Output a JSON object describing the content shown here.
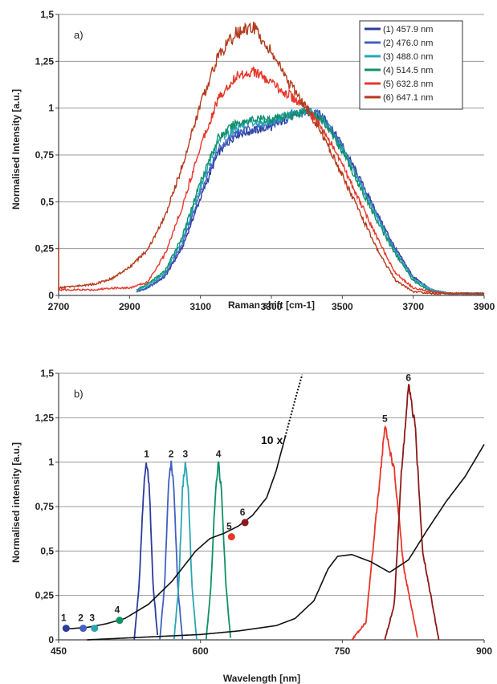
{
  "chart_data": [
    {
      "type": "line",
      "panel_label": "a)",
      "xlabel": "Raman shift [cm-1]",
      "ylabel": "Normalised Intensity [a.u.]",
      "xlim": [
        2700,
        3900
      ],
      "ylim": [
        0,
        1.5
      ],
      "x_ticks": [
        "2700",
        "2900",
        "3100",
        "3300",
        "3500",
        "3700",
        "3900"
      ],
      "y_ticks": [
        "0",
        "0,25",
        "0,5",
        "0,75",
        "1",
        "1,25",
        "1,5"
      ],
      "grid": "horizontal",
      "legend_position": "top-right",
      "series": [
        {
          "name": "(1) 457.9 nm",
          "color": "#2b3c9c",
          "x": [
            2920,
            2950,
            3000,
            3050,
            3100,
            3150,
            3200,
            3250,
            3300,
            3350,
            3400,
            3430,
            3450,
            3500,
            3550,
            3600,
            3650,
            3700,
            3750,
            3800,
            3850,
            3900
          ],
          "y": [
            0.02,
            0.04,
            0.1,
            0.26,
            0.52,
            0.76,
            0.86,
            0.88,
            0.9,
            0.95,
            0.98,
            0.97,
            0.95,
            0.8,
            0.62,
            0.43,
            0.25,
            0.1,
            0.03,
            0.01,
            0.01,
            0.01
          ]
        },
        {
          "name": "(2) 476.0 nm",
          "color": "#4160c0",
          "x": [
            2920,
            2950,
            3000,
            3050,
            3100,
            3150,
            3200,
            3250,
            3300,
            3350,
            3400,
            3430,
            3450,
            3500,
            3550,
            3600,
            3650,
            3700,
            3750,
            3800,
            3850,
            3900
          ],
          "y": [
            0.02,
            0.04,
            0.11,
            0.28,
            0.55,
            0.78,
            0.87,
            0.89,
            0.91,
            0.96,
            0.99,
            0.97,
            0.94,
            0.79,
            0.61,
            0.42,
            0.24,
            0.09,
            0.03,
            0.01,
            0.01,
            0.01
          ]
        },
        {
          "name": "(3) 488.0 nm",
          "color": "#2aa6b4",
          "x": [
            2920,
            2950,
            3000,
            3050,
            3100,
            3150,
            3200,
            3250,
            3300,
            3350,
            3400,
            3430,
            3450,
            3500,
            3550,
            3600,
            3650,
            3700,
            3750,
            3800,
            3850,
            3900
          ],
          "y": [
            0.03,
            0.05,
            0.12,
            0.3,
            0.58,
            0.82,
            0.9,
            0.92,
            0.93,
            0.96,
            0.99,
            0.96,
            0.93,
            0.78,
            0.6,
            0.41,
            0.23,
            0.09,
            0.03,
            0.01,
            0.01,
            0.01
          ]
        },
        {
          "name": "(4) 514.5 nm",
          "color": "#119068",
          "x": [
            2920,
            2950,
            3000,
            3050,
            3100,
            3150,
            3200,
            3250,
            3300,
            3350,
            3400,
            3430,
            3450,
            3500,
            3550,
            3600,
            3650,
            3700,
            3750,
            3800,
            3850,
            3900
          ],
          "y": [
            0.03,
            0.06,
            0.13,
            0.32,
            0.61,
            0.84,
            0.92,
            0.94,
            0.94,
            0.96,
            0.99,
            0.95,
            0.92,
            0.77,
            0.58,
            0.39,
            0.22,
            0.08,
            0.02,
            0.01,
            0.01,
            0.01
          ]
        },
        {
          "name": "(5) 632.8 nm",
          "color": "#e8362a",
          "x": [
            2700,
            2750,
            2800,
            2850,
            2900,
            2950,
            3000,
            3050,
            3100,
            3150,
            3200,
            3250,
            3300,
            3350,
            3400,
            3450,
            3500,
            3550,
            3600,
            3650,
            3700,
            3750,
            3800,
            3850,
            3900
          ],
          "y": [
            0.03,
            0.03,
            0.03,
            0.04,
            0.04,
            0.07,
            0.22,
            0.48,
            0.8,
            1.05,
            1.17,
            1.2,
            1.13,
            1.07,
            1.0,
            0.87,
            0.7,
            0.5,
            0.3,
            0.12,
            0.04,
            0.02,
            0.01,
            0.01,
            0.01
          ]
        },
        {
          "name": "(6) 647.1 nm",
          "color": "#b33a1c",
          "x": [
            2700,
            2750,
            2800,
            2850,
            2900,
            2950,
            3000,
            3050,
            3100,
            3150,
            3200,
            3250,
            3300,
            3350,
            3400,
            3450,
            3500,
            3550,
            3600,
            3650,
            3700,
            3750,
            3800,
            3850,
            3900
          ],
          "y": [
            0.04,
            0.05,
            0.06,
            0.09,
            0.15,
            0.24,
            0.42,
            0.7,
            1.02,
            1.28,
            1.4,
            1.43,
            1.3,
            1.13,
            1.0,
            0.84,
            0.64,
            0.44,
            0.24,
            0.08,
            0.02,
            0.01,
            0.01,
            0.01,
            0.01
          ]
        }
      ]
    },
    {
      "type": "line",
      "panel_label": "b)",
      "xlabel": "Wavelength [nm]",
      "ylabel": "Normalised intensity [a.u.]",
      "xlim": [
        450,
        900
      ],
      "ylim": [
        0,
        1.5
      ],
      "x_ticks": [
        "450",
        "600",
        "750",
        "900"
      ],
      "y_ticks": [
        "0",
        "0,25",
        "0,5",
        "0,75",
        "1",
        "1,25",
        "1,5"
      ],
      "grid": "horizontal",
      "annotation": "10 x",
      "series": [
        {
          "label": "1",
          "color": "#2b3c9c",
          "x": [
            530,
            535,
            540,
            543,
            546,
            550,
            555
          ],
          "y": [
            0.0,
            0.3,
            0.85,
            1.0,
            0.85,
            0.3,
            0.0
          ]
        },
        {
          "label": "2",
          "color": "#4160c0",
          "x": [
            557,
            562,
            566,
            569,
            572,
            576,
            581
          ],
          "y": [
            0.0,
            0.3,
            0.85,
            1.0,
            0.85,
            0.3,
            0.0
          ]
        },
        {
          "label": "3",
          "color": "#2aa6b4",
          "x": [
            572,
            577,
            581,
            584,
            587,
            591,
            596
          ],
          "y": [
            0.0,
            0.3,
            0.85,
            1.0,
            0.85,
            0.3,
            0.0
          ]
        },
        {
          "label": "4",
          "color": "#119068",
          "x": [
            606,
            611,
            616,
            619,
            622,
            627,
            632
          ],
          "y": [
            0.0,
            0.3,
            0.85,
            1.0,
            0.85,
            0.3,
            0.0
          ]
        },
        {
          "label": "5",
          "color": "#e8362a",
          "x": [
            760,
            775,
            785,
            795,
            805,
            815,
            830
          ],
          "y": [
            0.0,
            0.1,
            0.65,
            1.2,
            0.95,
            0.4,
            0.0
          ]
        },
        {
          "label": "6",
          "color": "#8b1a1a",
          "x": [
            795,
            805,
            812,
            820,
            827,
            835,
            852
          ],
          "y": [
            0.0,
            0.2,
            0.9,
            1.43,
            1.2,
            0.5,
            0.0
          ]
        },
        {
          "color": "#111111",
          "x": [
            480,
            520,
            560,
            600,
            640,
            680,
            700,
            720,
            735,
            745,
            760,
            780,
            800,
            820,
            840,
            860,
            880,
            900
          ],
          "y": [
            0.0,
            0.01,
            0.02,
            0.03,
            0.05,
            0.08,
            0.12,
            0.22,
            0.4,
            0.47,
            0.48,
            0.44,
            0.38,
            0.45,
            0.62,
            0.78,
            0.92,
            1.1
          ]
        },
        {
          "color": "#111111",
          "dashed_from_x": 690,
          "x": [
            455,
            480,
            500,
            520,
            545,
            570,
            595,
            610,
            625,
            640,
            655,
            670,
            680,
            690,
            700,
            708
          ],
          "y": [
            0.06,
            0.07,
            0.09,
            0.12,
            0.2,
            0.33,
            0.5,
            0.57,
            0.6,
            0.64,
            0.7,
            0.8,
            0.95,
            1.15,
            1.35,
            1.5
          ]
        }
      ],
      "points": [
        {
          "label": "1",
          "x": 457.9,
          "y": 0.065,
          "color": "#2b3c9c"
        },
        {
          "label": "2",
          "x": 476.0,
          "y": 0.065,
          "color": "#4160c0"
        },
        {
          "label": "3",
          "x": 488.0,
          "y": 0.065,
          "color": "#2aa6b4"
        },
        {
          "label": "4",
          "x": 514.5,
          "y": 0.11,
          "color": "#119068"
        },
        {
          "label": "5",
          "x": 632.8,
          "y": 0.58,
          "color": "#e8362a"
        },
        {
          "label": "6",
          "x": 647.1,
          "y": 0.66,
          "color": "#8b1a1a"
        }
      ]
    }
  ]
}
